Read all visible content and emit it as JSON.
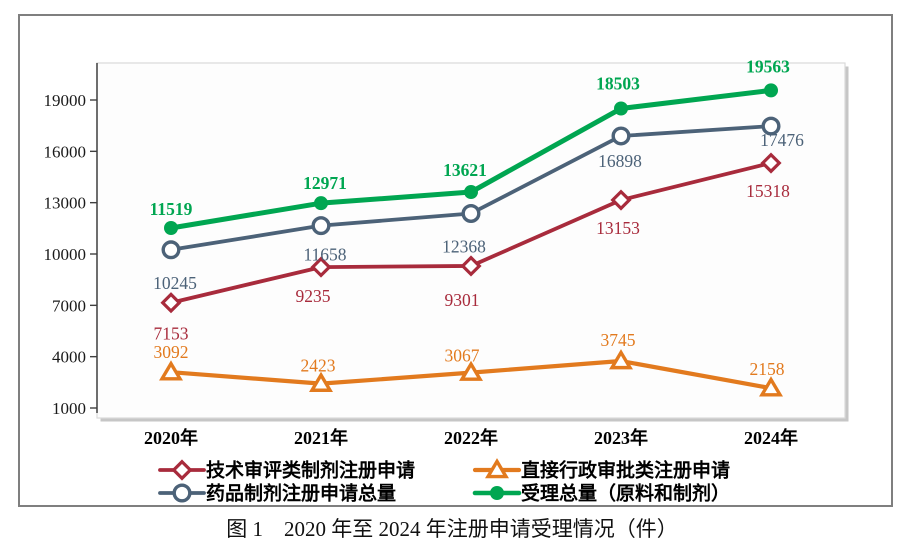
{
  "caption": "图 1　2020 年至 2024 年注册申请受理情况（件）",
  "chart_data": {
    "type": "line",
    "title": "",
    "xlabel": "",
    "ylabel": "",
    "x": [
      "2020年",
      "2021年",
      "2022年",
      "2023年",
      "2024年"
    ],
    "y_ticks": [
      1000,
      4000,
      7000,
      10000,
      13000,
      16000,
      19000
    ],
    "ylim": [
      1000,
      21200
    ],
    "grid": false,
    "legend_position": "bottom-two-column",
    "series": [
      {
        "name": "技术审评类制剂注册申请",
        "color": "#A82B3C",
        "marker": "diamond-hollow",
        "line_width": 3.8,
        "label_style": "normal",
        "values": [
          7153,
          9235,
          9301,
          13153,
          15318
        ]
      },
      {
        "name": "直接行政审批类注册申请",
        "color": "#E27A1E",
        "marker": "triangle-hollow",
        "line_width": 4.2,
        "label_style": "normal",
        "values": [
          3092,
          2423,
          3067,
          3745,
          2158
        ]
      },
      {
        "name": "药品制剂注册申请总量",
        "color": "#4C6278",
        "marker": "circle-hollow",
        "line_width": 3.8,
        "label_style": "normal",
        "values": [
          10245,
          11658,
          12368,
          16898,
          17476
        ]
      },
      {
        "name": "受理总量（原料和制剂）",
        "color": "#00A651",
        "marker": "circle-filled",
        "line_width": 5,
        "label_style": "bold",
        "values": [
          11519,
          12971,
          13621,
          18503,
          19563
        ]
      }
    ]
  }
}
